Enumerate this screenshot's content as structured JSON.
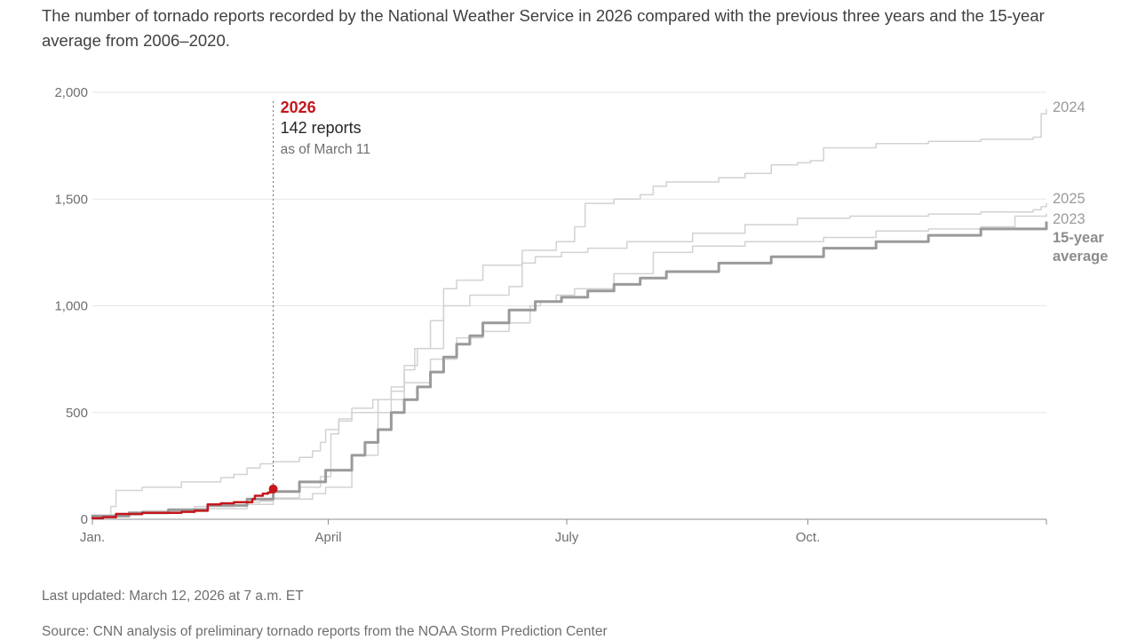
{
  "subtitle": "The number of tornado reports recorded by the National Weather Service in 2026 compared with the previous three years and the 15-year average from 2006–2020.",
  "footer": {
    "updated": "Last updated: March 12, 2026 at 7 a.m. ET",
    "source": "Source: CNN analysis of preliminary tornado reports from the NOAA Storm Prediction Center"
  },
  "chart_data": {
    "type": "line",
    "title": "",
    "xlabel": "",
    "ylabel": "",
    "xlim": [
      1,
      365
    ],
    "ylim": [
      0,
      2000
    ],
    "yticks": [
      {
        "value": 0,
        "label": "0"
      },
      {
        "value": 500,
        "label": "500"
      },
      {
        "value": 1000,
        "label": "1,000"
      },
      {
        "value": 1500,
        "label": "1,500"
      },
      {
        "value": 2000,
        "label": "2,000"
      }
    ],
    "xticks": [
      {
        "value": 1,
        "label": "Jan."
      },
      {
        "value": 91,
        "label": "April"
      },
      {
        "value": 182,
        "label": "July"
      },
      {
        "value": 274,
        "label": "Oct."
      }
    ],
    "annotation": {
      "x": 70,
      "year": "2026",
      "count_text": "142 reports",
      "date_text": "as of March 11"
    },
    "colors": {
      "highlight": "#c4161c",
      "average": "#9a9a9a",
      "past": "#d2d2d2",
      "grid": "#e6e6e6"
    },
    "series": [
      {
        "name": "2024",
        "label": "2024",
        "style": "past",
        "x": [
          1,
          8,
          10,
          20,
          35,
          50,
          55,
          60,
          65,
          70,
          80,
          85,
          88,
          90,
          95,
          100,
          108,
          115,
          120,
          124,
          130,
          135,
          140,
          150,
          165,
          178,
          185,
          189,
          200,
          210,
          215,
          220,
          240,
          250,
          260,
          270,
          275,
          280,
          300,
          320,
          340,
          360,
          363,
          365
        ],
        "y": [
          20,
          60,
          135,
          150,
          175,
          195,
          210,
          240,
          260,
          270,
          290,
          320,
          360,
          420,
          470,
          520,
          560,
          620,
          700,
          800,
          930,
          1080,
          1120,
          1190,
          1260,
          1300,
          1370,
          1480,
          1500,
          1520,
          1560,
          1580,
          1600,
          1620,
          1660,
          1670,
          1680,
          1740,
          1760,
          1770,
          1780,
          1790,
          1900,
          1920
        ]
      },
      {
        "name": "2025",
        "label": "2025",
        "style": "past",
        "x": [
          1,
          10,
          20,
          40,
          55,
          65,
          70,
          85,
          90,
          100,
          110,
          115,
          120,
          125,
          135,
          145,
          160,
          165,
          170,
          180,
          190,
          205,
          230,
          250,
          270,
          290,
          320,
          340,
          360,
          363,
          365
        ],
        "y": [
          10,
          25,
          40,
          60,
          80,
          85,
          95,
          120,
          150,
          300,
          500,
          600,
          720,
          800,
          1000,
          1050,
          1090,
          1200,
          1230,
          1250,
          1270,
          1300,
          1340,
          1380,
          1410,
          1420,
          1430,
          1440,
          1450,
          1465,
          1480
        ]
      },
      {
        "name": "2023",
        "label": "2023",
        "style": "past",
        "x": [
          1,
          20,
          40,
          60,
          70,
          80,
          88,
          92,
          95,
          100,
          110,
          120,
          130,
          140,
          150,
          160,
          168,
          172,
          178,
          185,
          200,
          215,
          230,
          250,
          280,
          300,
          320,
          340,
          353,
          365
        ],
        "y": [
          20,
          35,
          50,
          70,
          100,
          150,
          200,
          400,
          460,
          500,
          560,
          640,
          750,
          850,
          880,
          920,
          1000,
          1020,
          1050,
          1080,
          1150,
          1250,
          1280,
          1300,
          1320,
          1350,
          1360,
          1370,
          1420,
          1430
        ]
      },
      {
        "name": "15-year average",
        "label": "15-year average",
        "style": "average",
        "x": [
          1,
          15,
          30,
          45,
          60,
          70,
          80,
          90,
          100,
          105,
          110,
          115,
          120,
          125,
          130,
          135,
          140,
          145,
          150,
          160,
          170,
          180,
          190,
          200,
          210,
          220,
          240,
          260,
          280,
          300,
          320,
          340,
          365
        ],
        "y": [
          15,
          30,
          45,
          65,
          95,
          130,
          175,
          230,
          300,
          360,
          420,
          500,
          560,
          620,
          690,
          760,
          820,
          860,
          920,
          980,
          1020,
          1040,
          1070,
          1100,
          1130,
          1160,
          1200,
          1230,
          1270,
          1300,
          1330,
          1360,
          1390
        ]
      },
      {
        "name": "2026",
        "label": "2026",
        "style": "highlight",
        "x": [
          1,
          5,
          10,
          20,
          30,
          35,
          40,
          44,
          45,
          50,
          55,
          60,
          62,
          63,
          66,
          68,
          69,
          70
        ],
        "y": [
          5,
          10,
          25,
          30,
          30,
          35,
          40,
          40,
          70,
          75,
          80,
          80,
          95,
          110,
          120,
          125,
          130,
          142
        ]
      }
    ]
  }
}
